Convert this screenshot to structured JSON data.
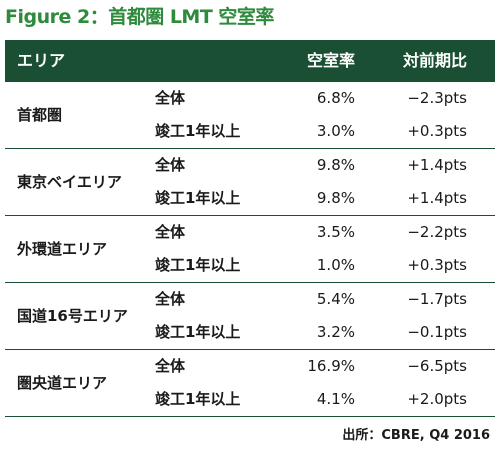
{
  "figure_title": "Figure 2：首都圏 LMT 空室率",
  "table": {
    "headers": {
      "area": "エリア",
      "vacancy": "空室率",
      "yoy": "対前期比"
    },
    "groups": [
      {
        "area": "首都圏",
        "rows": [
          {
            "category": "全体",
            "vacancy": "6.8%",
            "yoy": "−2.3pts"
          },
          {
            "category": "竣工1年以上",
            "vacancy": "3.0%",
            "yoy": "+0.3pts"
          }
        ]
      },
      {
        "area": "東京ベイエリア",
        "rows": [
          {
            "category": "全体",
            "vacancy": "9.8%",
            "yoy": "+1.4pts"
          },
          {
            "category": "竣工1年以上",
            "vacancy": "9.8%",
            "yoy": "+1.4pts"
          }
        ]
      },
      {
        "area": "外環道エリア",
        "rows": [
          {
            "category": "全体",
            "vacancy": "3.5%",
            "yoy": "−2.2pts"
          },
          {
            "category": "竣工1年以上",
            "vacancy": "1.0%",
            "yoy": "+0.3pts"
          }
        ]
      },
      {
        "area": "国道16号エリア",
        "rows": [
          {
            "category": "全体",
            "vacancy": "5.4%",
            "yoy": "−1.7pts"
          },
          {
            "category": "竣工1年以上",
            "vacancy": "3.2%",
            "yoy": "−0.1pts"
          }
        ]
      },
      {
        "area": "圏央道エリア",
        "rows": [
          {
            "category": "全体",
            "vacancy": "16.9%",
            "yoy": "−6.5pts"
          },
          {
            "category": "竣工1年以上",
            "vacancy": "4.1%",
            "yoy": "+2.0pts"
          }
        ]
      }
    ]
  },
  "source": "出所：CBRE, Q4 2016",
  "colors": {
    "title_green": "#2e8a3c",
    "header_bg": "#1a4f33",
    "header_text": "#ffffff",
    "rule": "#1a4f33"
  }
}
